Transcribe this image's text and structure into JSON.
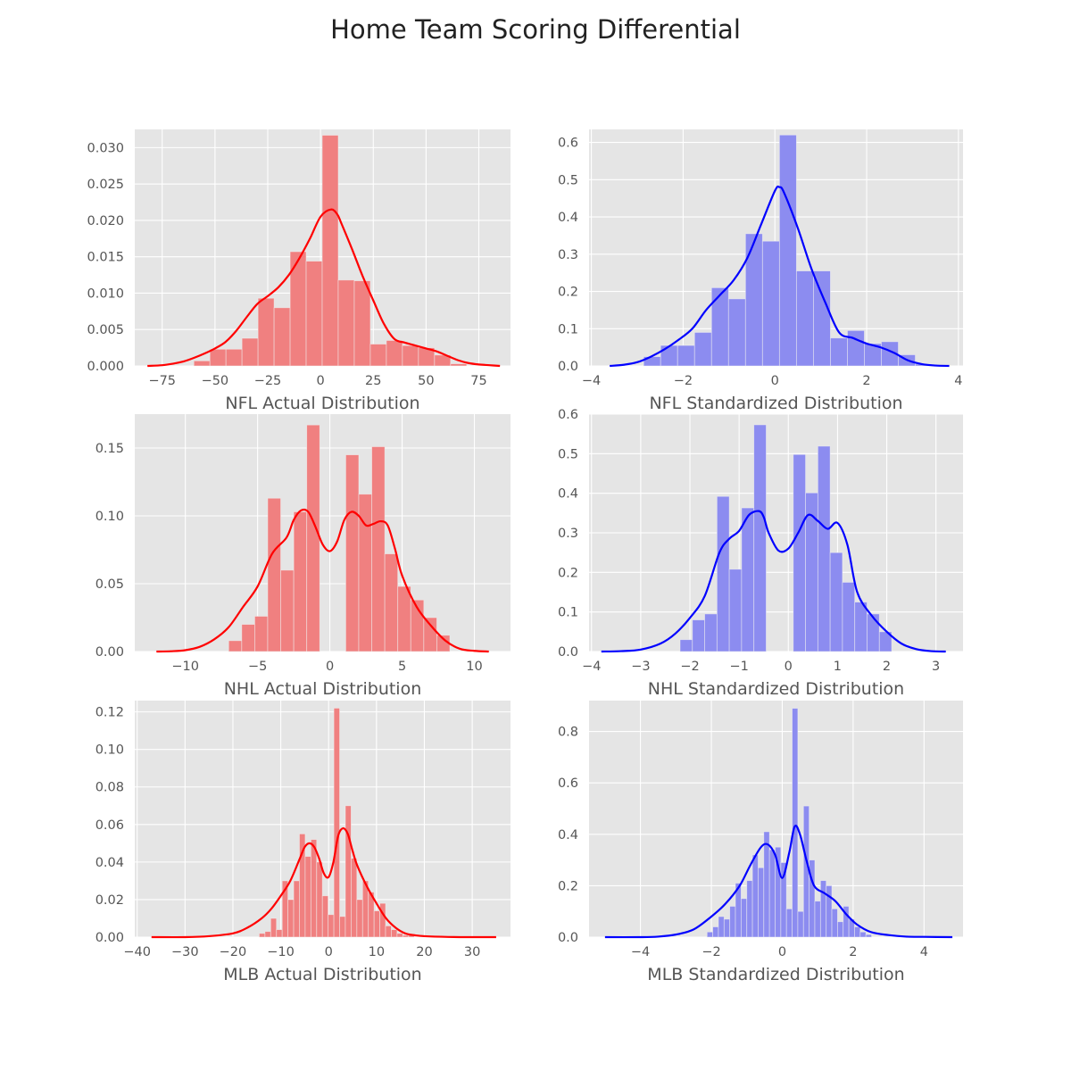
{
  "figure": {
    "title": "Home Team Scoring Differential",
    "background": "#ffffff",
    "panel_background": "#e5e5e5",
    "grid_color": "#ffffff",
    "text_color": "#555555"
  },
  "chart_data": [
    {
      "type": "histogram",
      "title": "NFL Actual Distribution",
      "xlabel": "NFL Actual Distribution",
      "ylabel": "",
      "xlim": [
        -88,
        90
      ],
      "ylim": [
        0,
        0.0325
      ],
      "xticks": [
        -75,
        -50,
        -25,
        0,
        25,
        50,
        75
      ],
      "xtick_labels": [
        "−75",
        "−50",
        "−25",
        "0",
        "25",
        "50",
        "75"
      ],
      "yticks": [
        0.0,
        0.005,
        0.01,
        0.015,
        0.02,
        0.025,
        0.03
      ],
      "ytick_labels": [
        "0.000",
        "0.005",
        "0.010",
        "0.015",
        "0.020",
        "0.025",
        "0.030"
      ],
      "bar_color": "#f08080",
      "kde_color": "#ff0000",
      "bins": {
        "edges": [
          -60,
          -52.4,
          -44.8,
          -37.2,
          -29.6,
          -22.0,
          -14.4,
          -6.8,
          0.8,
          8.4,
          16.0,
          23.6,
          31.2,
          38.8,
          46.4,
          54.0,
          61.6,
          69.2
        ],
        "heights": [
          0.0007,
          0.0023,
          0.0023,
          0.0038,
          0.0093,
          0.008,
          0.0157,
          0.0144,
          0.0317,
          0.0118,
          0.0117,
          0.003,
          0.0035,
          0.0028,
          0.0025,
          0.0015,
          0.0003
        ]
      },
      "kde": {
        "x": [
          -82,
          -75,
          -70,
          -65,
          -60,
          -55,
          -50,
          -45,
          -40,
          -35,
          -30,
          -25,
          -20,
          -15,
          -10,
          -5,
          0,
          5,
          8,
          10,
          15,
          20,
          25,
          30,
          35,
          40,
          45,
          50,
          55,
          60,
          65,
          70,
          75,
          80,
          85
        ],
        "y": [
          0.0,
          0.0001,
          0.0003,
          0.0006,
          0.0011,
          0.0017,
          0.0024,
          0.0033,
          0.0048,
          0.0067,
          0.0085,
          0.0096,
          0.0108,
          0.0125,
          0.0148,
          0.0175,
          0.0205,
          0.0215,
          0.0208,
          0.0195,
          0.016,
          0.0123,
          0.009,
          0.0058,
          0.0037,
          0.0032,
          0.0028,
          0.0024,
          0.002,
          0.0014,
          0.0008,
          0.0004,
          0.0002,
          0.0001,
          0.0
        ]
      }
    },
    {
      "type": "histogram",
      "title": "NFL Standardized Distribution",
      "xlabel": "NFL Standardized Distribution",
      "ylabel": "",
      "xlim": [
        -4.05,
        4.1
      ],
      "ylim": [
        0,
        0.635
      ],
      "xticks": [
        -4,
        -2,
        0,
        2,
        4
      ],
      "xtick_labels": [
        "−4",
        "−2",
        "0",
        "2",
        "4"
      ],
      "yticks": [
        0.0,
        0.1,
        0.2,
        0.3,
        0.4,
        0.5,
        0.6
      ],
      "ytick_labels": [
        "0.0",
        "0.1",
        "0.2",
        "0.3",
        "0.4",
        "0.5",
        "0.6"
      ],
      "bar_color": "#8c8cf0",
      "kde_color": "#0000ff",
      "bins": {
        "edges": [
          -2.86,
          -2.49,
          -2.12,
          -1.75,
          -1.38,
          -1.01,
          -0.64,
          -0.27,
          0.1,
          0.47,
          0.84,
          1.21,
          1.58,
          1.95,
          2.32,
          2.69,
          3.06,
          3.43
        ],
        "heights": [
          0.025,
          0.055,
          0.055,
          0.09,
          0.21,
          0.18,
          0.355,
          0.335,
          0.62,
          0.255,
          0.255,
          0.075,
          0.095,
          0.06,
          0.065,
          0.03,
          0.005
        ]
      },
      "kde": {
        "x": [
          -3.6,
          -3.3,
          -3.0,
          -2.7,
          -2.4,
          -2.1,
          -1.8,
          -1.5,
          -1.2,
          -0.9,
          -0.6,
          -0.3,
          0.0,
          0.1,
          0.2,
          0.5,
          0.8,
          1.1,
          1.4,
          1.7,
          2.0,
          2.3,
          2.6,
          2.9,
          3.2,
          3.5,
          3.8
        ],
        "y": [
          0.0,
          0.003,
          0.01,
          0.025,
          0.045,
          0.07,
          0.1,
          0.15,
          0.19,
          0.23,
          0.29,
          0.38,
          0.47,
          0.48,
          0.465,
          0.37,
          0.26,
          0.17,
          0.09,
          0.075,
          0.06,
          0.05,
          0.035,
          0.015,
          0.005,
          0.001,
          0.0
        ]
      }
    },
    {
      "type": "histogram",
      "title": "NHL Actual Distribution",
      "xlabel": "NHL Actual Distribution",
      "ylabel": "",
      "xlim": [
        -13.5,
        12.5
      ],
      "ylim": [
        0,
        0.175
      ],
      "xticks": [
        -10,
        -5,
        0,
        5,
        10
      ],
      "xtick_labels": [
        "−10",
        "−5",
        "0",
        "5",
        "10"
      ],
      "yticks": [
        0.0,
        0.05,
        0.1,
        0.15
      ],
      "ytick_labels": [
        "0.00",
        "0.05",
        "0.10",
        "0.15"
      ],
      "bar_color": "#f08080",
      "kde_color": "#ff0000",
      "bins": {
        "edges": [
          -7.0,
          -6.1,
          -5.2,
          -4.3,
          -3.4,
          -2.5,
          -1.6,
          -0.7,
          0.2,
          1.1,
          2.0,
          2.9,
          3.8,
          4.7,
          5.6,
          6.5,
          7.4,
          8.3
        ],
        "heights": [
          0.008,
          0.02,
          0.026,
          0.113,
          0.06,
          0.103,
          0.167,
          0.0,
          0.0,
          0.145,
          0.116,
          0.151,
          0.072,
          0.048,
          0.038,
          0.025,
          0.012
        ]
      },
      "kde": {
        "x": [
          -12,
          -11,
          -10,
          -9,
          -8,
          -7,
          -6,
          -5,
          -4,
          -3,
          -2.5,
          -2,
          -1.5,
          -1,
          -0.5,
          0,
          0.5,
          1,
          1.5,
          2,
          2.5,
          3,
          3.5,
          4,
          4.5,
          5,
          6,
          7,
          8,
          9,
          10,
          11
        ],
        "y": [
          0.0,
          0.0002,
          0.001,
          0.0035,
          0.009,
          0.018,
          0.033,
          0.048,
          0.072,
          0.084,
          0.097,
          0.104,
          0.103,
          0.092,
          0.079,
          0.074,
          0.081,
          0.097,
          0.103,
          0.1,
          0.093,
          0.094,
          0.096,
          0.093,
          0.076,
          0.056,
          0.033,
          0.019,
          0.008,
          0.002,
          0.0005,
          0.0
        ]
      }
    },
    {
      "type": "histogram",
      "title": "NHL Standardized Distribution",
      "xlabel": "NHL Standardized Distribution",
      "ylabel": "",
      "xlim": [
        -4.05,
        3.55
      ],
      "ylim": [
        0,
        0.6
      ],
      "xticks": [
        -4,
        -3,
        -2,
        -1,
        0,
        1,
        2,
        3
      ],
      "xtick_labels": [
        "−4",
        "−3",
        "−2",
        "−1",
        "0",
        "1",
        "2",
        "3"
      ],
      "yticks": [
        0.0,
        0.1,
        0.2,
        0.3,
        0.4,
        0.5,
        0.6
      ],
      "ytick_labels": [
        "0.0",
        "0.1",
        "0.2",
        "0.3",
        "0.4",
        "0.5",
        "0.6"
      ],
      "bar_color": "#8c8cf0",
      "kde_color": "#0000ff",
      "bins": {
        "edges": [
          -2.2,
          -1.95,
          -1.7,
          -1.45,
          -1.2,
          -0.95,
          -0.7,
          -0.45,
          0.1,
          0.35,
          0.6,
          0.85,
          1.1,
          1.35,
          1.6,
          1.85,
          2.1,
          2.35
        ],
        "heights": [
          0.03,
          0.08,
          0.095,
          0.392,
          0.208,
          0.363,
          0.573,
          0.0,
          0.498,
          0.401,
          0.519,
          0.25,
          0.175,
          0.125,
          0.095,
          0.05,
          0.0
        ]
      },
      "kde": {
        "x": [
          -3.8,
          -3.4,
          -3.0,
          -2.6,
          -2.3,
          -2.0,
          -1.7,
          -1.4,
          -1.2,
          -1.0,
          -0.8,
          -0.6,
          -0.5,
          -0.4,
          -0.2,
          0.0,
          0.2,
          0.4,
          0.6,
          0.8,
          1.0,
          1.2,
          1.4,
          1.7,
          2.0,
          2.3,
          2.6,
          2.9,
          3.2
        ],
        "y": [
          0.0,
          0.001,
          0.005,
          0.02,
          0.045,
          0.085,
          0.14,
          0.25,
          0.285,
          0.305,
          0.345,
          0.355,
          0.34,
          0.3,
          0.255,
          0.26,
          0.3,
          0.345,
          0.33,
          0.31,
          0.325,
          0.27,
          0.15,
          0.09,
          0.05,
          0.02,
          0.006,
          0.001,
          0.0
        ]
      }
    },
    {
      "type": "histogram",
      "title": "MLB Actual Distribution",
      "xlabel": "MLB Actual Distribution",
      "ylabel": "",
      "xlim": [
        -40.5,
        38
      ],
      "ylim": [
        0,
        0.126
      ],
      "xticks": [
        -40,
        -30,
        -20,
        -10,
        0,
        10,
        20,
        30
      ],
      "xtick_labels": [
        "−40",
        "−30",
        "−20",
        "−10",
        "0",
        "10",
        "20",
        "30"
      ],
      "yticks": [
        0.0,
        0.02,
        0.04,
        0.06,
        0.08,
        0.1,
        0.12
      ],
      "ytick_labels": [
        "0.00",
        "0.02",
        "0.04",
        "0.06",
        "0.08",
        "0.10",
        "0.12"
      ],
      "bar_color": "#f08080",
      "kde_color": "#ff0000",
      "bins": {
        "edges": [
          -14.5,
          -13.3,
          -12.1,
          -10.9,
          -9.7,
          -8.5,
          -7.3,
          -6.1,
          -4.9,
          -3.7,
          -2.5,
          -1.3,
          -0.1,
          1.1,
          2.3,
          3.5,
          4.7,
          5.9,
          7.1,
          8.3,
          9.5,
          10.7,
          11.9,
          13.1,
          14.3,
          15.5,
          16.7,
          17.9
        ],
        "heights": [
          0.002,
          0.003,
          0.01,
          0.004,
          0.03,
          0.02,
          0.03,
          0.055,
          0.043,
          0.052,
          0.04,
          0.022,
          0.012,
          0.122,
          0.011,
          0.07,
          0.042,
          0.02,
          0.03,
          0.024,
          0.014,
          0.018,
          0.006,
          0.004,
          0.002,
          0.001,
          0.001
        ]
      },
      "kde": {
        "x": [
          -37,
          -30,
          -25,
          -20,
          -17,
          -14,
          -12,
          -10,
          -8,
          -6,
          -5,
          -4,
          -3,
          -2,
          -1,
          0,
          1,
          2,
          3,
          4,
          5,
          6,
          8,
          10,
          12,
          14,
          16,
          18,
          20,
          25,
          30,
          35
        ],
        "y": [
          0.0,
          0.0,
          0.0005,
          0.002,
          0.005,
          0.01,
          0.015,
          0.022,
          0.03,
          0.042,
          0.048,
          0.05,
          0.048,
          0.042,
          0.034,
          0.032,
          0.04,
          0.054,
          0.058,
          0.055,
          0.046,
          0.038,
          0.027,
          0.018,
          0.01,
          0.005,
          0.002,
          0.001,
          0.0005,
          0.0001,
          0.0,
          0.0
        ]
      }
    },
    {
      "type": "histogram",
      "title": "MLB Standardized Distribution",
      "xlabel": "MLB Standardized Distribution",
      "ylabel": "",
      "xlim": [
        -5.45,
        5.1
      ],
      "ylim": [
        0,
        0.92
      ],
      "xticks": [
        -4,
        -2,
        0,
        2,
        4
      ],
      "xtick_labels": [
        "−4",
        "−2",
        "0",
        "2",
        "4"
      ],
      "yticks": [
        0.0,
        0.2,
        0.4,
        0.6,
        0.8
      ],
      "ytick_labels": [
        "0.0",
        "0.2",
        "0.4",
        "0.6",
        "0.8"
      ],
      "bar_color": "#8c8cf0",
      "kde_color": "#0000ff",
      "bins": {
        "edges": [
          -2.12,
          -1.96,
          -1.8,
          -1.64,
          -1.48,
          -1.32,
          -1.16,
          -1.0,
          -0.84,
          -0.68,
          -0.52,
          -0.36,
          -0.2,
          -0.04,
          0.12,
          0.28,
          0.44,
          0.6,
          0.76,
          0.92,
          1.08,
          1.24,
          1.4,
          1.56,
          1.72,
          1.88,
          2.04,
          2.2,
          2.36,
          2.52
        ],
        "heights": [
          0.02,
          0.04,
          0.08,
          0.07,
          0.12,
          0.21,
          0.15,
          0.22,
          0.32,
          0.27,
          0.41,
          0.34,
          0.35,
          0.29,
          0.11,
          0.89,
          0.1,
          0.51,
          0.3,
          0.14,
          0.22,
          0.2,
          0.11,
          0.06,
          0.12,
          0.07,
          0.04,
          0.02,
          0.01
        ]
      },
      "kde": {
        "x": [
          -5.0,
          -4.0,
          -3.5,
          -3.0,
          -2.5,
          -2.0,
          -1.6,
          -1.2,
          -0.9,
          -0.6,
          -0.4,
          -0.2,
          0.0,
          0.2,
          0.35,
          0.5,
          0.7,
          0.9,
          1.2,
          1.5,
          1.8,
          2.1,
          2.5,
          3.0,
          3.5,
          4.0,
          4.8
        ],
        "y": [
          0.0,
          0.0,
          0.002,
          0.01,
          0.03,
          0.08,
          0.13,
          0.2,
          0.28,
          0.35,
          0.36,
          0.32,
          0.23,
          0.33,
          0.43,
          0.4,
          0.29,
          0.2,
          0.17,
          0.14,
          0.09,
          0.05,
          0.02,
          0.008,
          0.002,
          0.001,
          0.0
        ]
      }
    }
  ]
}
